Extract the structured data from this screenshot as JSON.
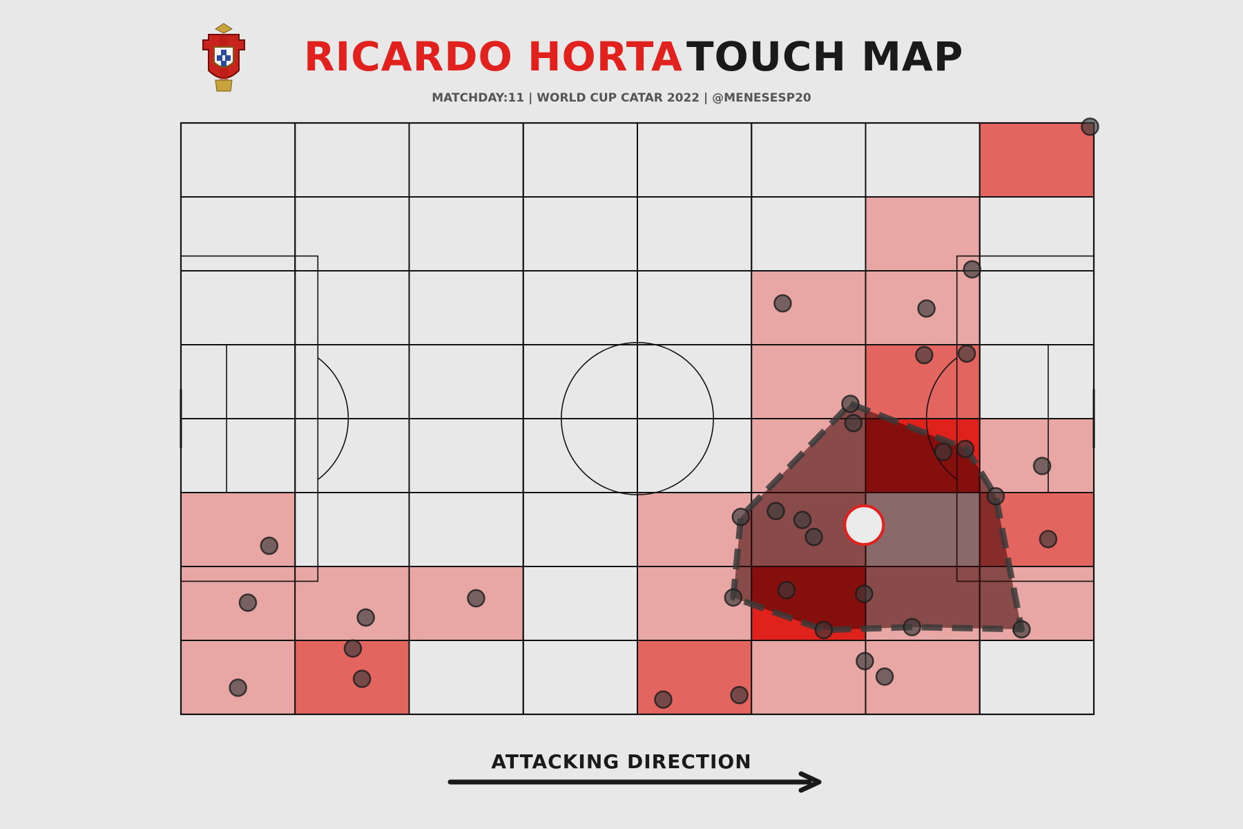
{
  "header": {
    "title_player": "RICARDO HORTA",
    "title_suffix": "TOUCH MAP",
    "subtitle": "MATCHDAY:11 | WORLD CUP CATAR 2022 | @MENESESP20",
    "crest_icon": "portugal-federation-crest-icon"
  },
  "footer": {
    "direction_label": "ATTACKING DIRECTION"
  },
  "colors": {
    "background": "#e8e8e8",
    "accent_red": "#e0211d",
    "bin_low": "#e8a7a5",
    "bin_mid": "#e3655f",
    "bin_high": "#e0221c",
    "point": "#3a3a3a",
    "hull_fill": "#3a0000",
    "average_marker_fill": "#ebebeb",
    "average_marker_edge": "#e0211d"
  },
  "chart_data": {
    "type": "heatmap",
    "pitch_length": 120,
    "pitch_width": 80,
    "xlim": [
      0,
      120
    ],
    "ylim": [
      0,
      80
    ],
    "bins_x": 8,
    "bins_y": 8,
    "bin_counts": [
      [
        0,
        0,
        0,
        0,
        0,
        0,
        0,
        2
      ],
      [
        0,
        0,
        0,
        0,
        0,
        0,
        1,
        0
      ],
      [
        0,
        0,
        0,
        0,
        0,
        1,
        1,
        0
      ],
      [
        0,
        0,
        0,
        0,
        0,
        1,
        2,
        0
      ],
      [
        0,
        0,
        0,
        0,
        0,
        1,
        3,
        1
      ],
      [
        1,
        0,
        0,
        0,
        1,
        1,
        0,
        2
      ],
      [
        1,
        1,
        1,
        0,
        1,
        3,
        1,
        1
      ],
      [
        1,
        2,
        0,
        0,
        2,
        1,
        1,
        0
      ]
    ],
    "touches": [
      {
        "x": 119.5,
        "y": 79.5
      },
      {
        "x": 104.0,
        "y": 60.2
      },
      {
        "x": 98.0,
        "y": 54.9
      },
      {
        "x": 79.1,
        "y": 55.6
      },
      {
        "x": 97.7,
        "y": 48.6
      },
      {
        "x": 103.3,
        "y": 48.8
      },
      {
        "x": 88.0,
        "y": 42.0
      },
      {
        "x": 88.4,
        "y": 39.4
      },
      {
        "x": 100.2,
        "y": 35.5
      },
      {
        "x": 103.1,
        "y": 35.9
      },
      {
        "x": 113.2,
        "y": 33.6
      },
      {
        "x": 107.1,
        "y": 29.5
      },
      {
        "x": 73.6,
        "y": 26.7
      },
      {
        "x": 78.2,
        "y": 27.5
      },
      {
        "x": 81.7,
        "y": 26.3
      },
      {
        "x": 83.2,
        "y": 24.0
      },
      {
        "x": 114.0,
        "y": 23.7
      },
      {
        "x": 11.6,
        "y": 22.8
      },
      {
        "x": 79.6,
        "y": 16.8
      },
      {
        "x": 89.8,
        "y": 16.3
      },
      {
        "x": 72.6,
        "y": 15.8
      },
      {
        "x": 38.8,
        "y": 15.7
      },
      {
        "x": 8.8,
        "y": 15.1
      },
      {
        "x": 24.3,
        "y": 13.1
      },
      {
        "x": 84.5,
        "y": 11.4
      },
      {
        "x": 96.1,
        "y": 11.8
      },
      {
        "x": 110.5,
        "y": 11.5
      },
      {
        "x": 22.6,
        "y": 8.9
      },
      {
        "x": 89.9,
        "y": 7.2
      },
      {
        "x": 92.5,
        "y": 5.1
      },
      {
        "x": 23.8,
        "y": 4.8
      },
      {
        "x": 7.5,
        "y": 3.6
      },
      {
        "x": 63.4,
        "y": 2.0
      },
      {
        "x": 73.4,
        "y": 2.6
      }
    ],
    "hull": [
      {
        "x": 88.0,
        "y": 42.0
      },
      {
        "x": 103.3,
        "y": 35.9
      },
      {
        "x": 107.1,
        "y": 29.5
      },
      {
        "x": 110.5,
        "y": 11.5
      },
      {
        "x": 96.1,
        "y": 11.8
      },
      {
        "x": 84.5,
        "y": 11.4
      },
      {
        "x": 72.6,
        "y": 15.8
      },
      {
        "x": 73.6,
        "y": 26.7
      }
    ],
    "average_position": {
      "x": 89.8,
      "y": 25.6
    },
    "legend": "none",
    "grid": true
  }
}
